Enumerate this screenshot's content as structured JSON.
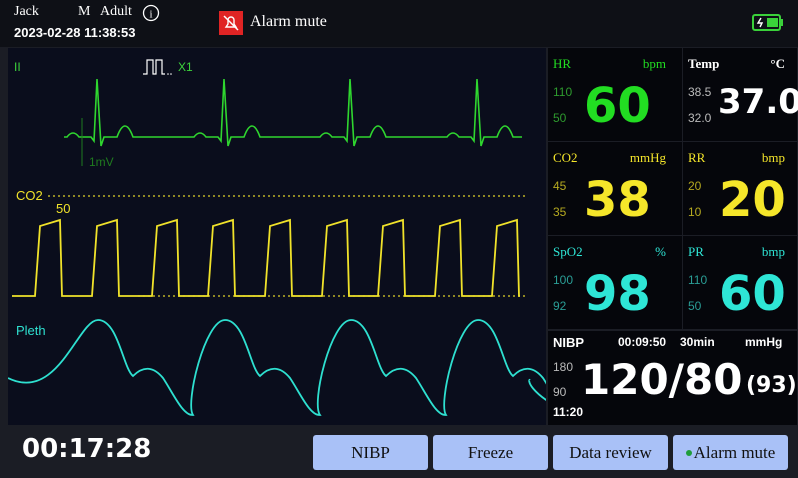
{
  "header": {
    "patient_name": "Jack",
    "sex": "M",
    "patient_type": "Adult",
    "datetime": "2023-02-28 11:38:53",
    "alarm_status": "Alarm mute"
  },
  "waveforms": {
    "ecg": {
      "lead": "II",
      "gain": "X1",
      "scale": "1mV"
    },
    "co2": {
      "label": "CO2",
      "scale": "50"
    },
    "pleth": {
      "label": "Pleth"
    }
  },
  "parameters": {
    "hr": {
      "label": "HR",
      "unit": "bpm",
      "high": "110",
      "low": "50",
      "value": "60"
    },
    "temp": {
      "label": "Temp",
      "unit": "°C",
      "high": "38.5",
      "low": "32.0",
      "value": "37.0"
    },
    "co2": {
      "label": "CO2",
      "unit": "mmHg",
      "high": "45",
      "low": "35",
      "value": "38"
    },
    "rr": {
      "label": "RR",
      "unit": "bmp",
      "high": "20",
      "low": "10",
      "value": "20"
    },
    "spo2": {
      "label": "SpO2",
      "unit": "%",
      "high": "100",
      "low": "92",
      "value": "98"
    },
    "pr": {
      "label": "PR",
      "unit": "bmp",
      "high": "110",
      "low": "50",
      "value": "60"
    }
  },
  "nibp": {
    "label": "NIBP",
    "elapsed": "00:09:50",
    "interval": "30min",
    "unit": "mmHg",
    "high": "180",
    "low": "90",
    "value": "120/80",
    "mean": "(93)",
    "time": "11:20"
  },
  "footer": {
    "timer": "00:17:28",
    "buttons": [
      "NIBP",
      "Freeze",
      "Data review",
      "Alarm mute"
    ]
  }
}
